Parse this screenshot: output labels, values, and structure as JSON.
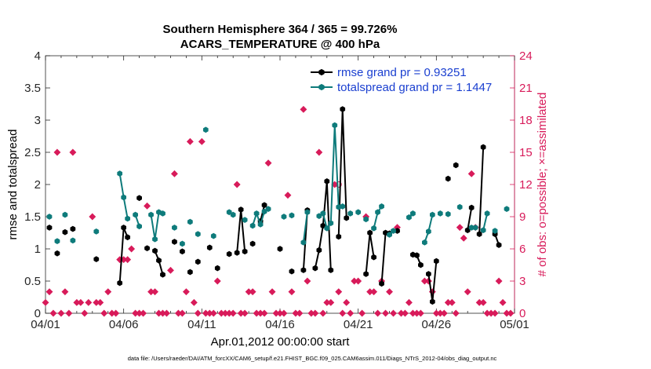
{
  "chart_data": {
    "type": "line",
    "title": "Southern Hemisphere 364 / 365 = 99.726%",
    "subtitle": "ACARS_TEMPERATURE @ 400 hPa",
    "xlabel": "Apr.01,2012 00:00:00 start",
    "ylabel": "rmse and totalspread",
    "y2label": "# of obs: o=possible; ×=assimilated",
    "footnote": "data file: /Users/raeder/DAI/ATM_forcXX/CAM6_setup/f.e21.FHIST_BGC.f09_025.CAM6assim.011/Diags_NTrS_2012-04/obs_diag_output.nc",
    "xlim": [
      0,
      30
    ],
    "ylim": [
      0,
      4
    ],
    "y2lim": [
      0,
      24
    ],
    "x_tick_labels": [
      "04/01",
      "04/06",
      "04/11",
      "04/16",
      "04/21",
      "04/26",
      "05/01"
    ],
    "y_ticks": [
      "0",
      "0.5",
      "1",
      "1.5",
      "2",
      "2.5",
      "3",
      "3.5",
      "4"
    ],
    "y2_ticks": [
      "0",
      "3",
      "6",
      "9",
      "12",
      "15",
      "18",
      "21",
      "24"
    ],
    "legend_position": "top-right",
    "series": [
      {
        "name": "rmse grand pr = 0.93251",
        "color": "#000000",
        "marker": "hexagon",
        "points": [
          [
            0.25,
            1.33
          ],
          [
            0.5,
            null
          ],
          [
            0.75,
            0.93
          ],
          [
            1.0,
            null
          ],
          [
            1.25,
            1.26
          ],
          [
            1.5,
            null
          ],
          [
            1.75,
            1.31
          ],
          [
            2.0,
            null
          ],
          [
            3.25,
            0.84
          ],
          [
            3.5,
            null
          ],
          [
            4.75,
            0.47
          ],
          [
            5.0,
            1.33
          ],
          [
            5.25,
            1.18
          ],
          [
            5.5,
            null
          ],
          [
            6.0,
            1.79
          ],
          [
            6.25,
            null
          ],
          [
            6.5,
            1.01
          ],
          [
            6.75,
            null
          ],
          [
            7.0,
            0.97
          ],
          [
            7.25,
            0.82
          ],
          [
            7.5,
            0.6
          ],
          [
            7.75,
            null
          ],
          [
            8.25,
            1.11
          ],
          [
            8.5,
            null
          ],
          [
            8.75,
            0.96
          ],
          [
            9.0,
            null
          ],
          [
            9.25,
            0.64
          ],
          [
            9.5,
            null
          ],
          [
            9.75,
            0.8
          ],
          [
            10.0,
            null
          ],
          [
            10.5,
            1.02
          ],
          [
            10.75,
            null
          ],
          [
            11.0,
            0.7
          ],
          [
            11.25,
            null
          ],
          [
            11.75,
            0.92
          ],
          [
            12.0,
            null
          ],
          [
            12.25,
            0.94
          ],
          [
            12.5,
            1.61
          ],
          [
            12.75,
            0.96
          ],
          [
            13.0,
            null
          ],
          [
            13.25,
            1.08
          ],
          [
            13.5,
            null
          ],
          [
            13.75,
            1.43
          ],
          [
            14.0,
            1.68
          ],
          [
            14.25,
            null
          ],
          [
            15.0,
            1.0
          ],
          [
            15.25,
            null
          ],
          [
            15.75,
            0.65
          ],
          [
            16.0,
            null
          ],
          [
            16.5,
            0.67
          ],
          [
            16.75,
            1.6
          ],
          [
            17.0,
            null
          ],
          [
            17.25,
            0.7
          ],
          [
            17.5,
            0.98
          ],
          [
            17.75,
            1.36
          ],
          [
            18.0,
            2.05
          ],
          [
            18.25,
            0.67
          ],
          [
            18.5,
            null
          ],
          [
            18.75,
            1.19
          ],
          [
            19.0,
            3.17
          ],
          [
            19.25,
            1.48
          ],
          [
            19.5,
            null
          ],
          [
            20.5,
            0.61
          ],
          [
            20.75,
            1.25
          ],
          [
            21.0,
            0.87
          ],
          [
            21.25,
            null
          ],
          [
            21.5,
            0.46
          ],
          [
            21.75,
            1.25
          ],
          [
            22.0,
            1.24
          ],
          [
            22.25,
            null
          ],
          [
            22.5,
            1.28
          ],
          [
            22.75,
            null
          ],
          [
            23.5,
            0.91
          ],
          [
            23.75,
            0.9
          ],
          [
            24.0,
            0.75
          ],
          [
            24.25,
            null
          ],
          [
            24.5,
            0.61
          ],
          [
            24.75,
            0.18
          ],
          [
            25.0,
            0.81
          ],
          [
            25.25,
            null
          ],
          [
            25.75,
            2.09
          ],
          [
            26.0,
            null
          ],
          [
            26.25,
            2.3
          ],
          [
            26.5,
            null
          ],
          [
            27.0,
            1.29
          ],
          [
            27.25,
            1.64
          ],
          [
            27.5,
            null
          ],
          [
            27.75,
            1.23
          ],
          [
            28.0,
            2.58
          ],
          [
            28.25,
            null
          ],
          [
            28.75,
            1.23
          ],
          [
            29.0,
            1.06
          ],
          [
            29.25,
            null
          ]
        ]
      },
      {
        "name": "totalspread grand pr = 1.1447",
        "color": "#0e7b7b",
        "marker": "hexagon",
        "points": [
          [
            0.25,
            1.5
          ],
          [
            0.5,
            null
          ],
          [
            0.75,
            1.12
          ],
          [
            1.0,
            null
          ],
          [
            1.25,
            1.53
          ],
          [
            1.5,
            null
          ],
          [
            1.75,
            1.13
          ],
          [
            2.0,
            null
          ],
          [
            3.25,
            1.27
          ],
          [
            3.5,
            null
          ],
          [
            4.75,
            2.17
          ],
          [
            5.0,
            1.8
          ],
          [
            5.25,
            1.47
          ],
          [
            5.5,
            null
          ],
          [
            5.75,
            1.53
          ],
          [
            6.0,
            1.35
          ],
          [
            6.25,
            null
          ],
          [
            6.75,
            1.53
          ],
          [
            7.0,
            1.15
          ],
          [
            7.25,
            1.57
          ],
          [
            7.5,
            1.55
          ],
          [
            7.75,
            null
          ],
          [
            8.25,
            1.33
          ],
          [
            8.5,
            null
          ],
          [
            8.75,
            1.08
          ],
          [
            9.0,
            null
          ],
          [
            9.25,
            1.42
          ],
          [
            9.5,
            null
          ],
          [
            9.75,
            1.23
          ],
          [
            10.0,
            null
          ],
          [
            10.25,
            2.85
          ],
          [
            10.5,
            null
          ],
          [
            10.75,
            1.2
          ],
          [
            11.0,
            null
          ],
          [
            11.75,
            1.57
          ],
          [
            12.0,
            1.53
          ],
          [
            12.25,
            null
          ],
          [
            12.75,
            1.45
          ],
          [
            13.0,
            null
          ],
          [
            13.25,
            1.36
          ],
          [
            13.5,
            1.55
          ],
          [
            13.75,
            1.38
          ],
          [
            14.0,
            1.58
          ],
          [
            14.25,
            1.62
          ],
          [
            14.5,
            null
          ],
          [
            15.25,
            1.5
          ],
          [
            15.5,
            null
          ],
          [
            15.75,
            1.52
          ],
          [
            16.0,
            null
          ],
          [
            16.5,
            1.1
          ],
          [
            16.75,
            1.57
          ],
          [
            17.0,
            null
          ],
          [
            17.5,
            1.51
          ],
          [
            17.75,
            1.55
          ],
          [
            18.0,
            1.32
          ],
          [
            18.25,
            1.4
          ],
          [
            18.5,
            2.92
          ],
          [
            18.75,
            1.65
          ],
          [
            19.0,
            1.66
          ],
          [
            19.25,
            null
          ],
          [
            19.5,
            1.55
          ],
          [
            19.75,
            null
          ],
          [
            20.0,
            1.57
          ],
          [
            20.25,
            null
          ],
          [
            20.5,
            1.46
          ],
          [
            20.75,
            null
          ],
          [
            21.0,
            1.32
          ],
          [
            21.25,
            1.57
          ],
          [
            21.5,
            1.66
          ],
          [
            21.75,
            null
          ],
          [
            22.0,
            1.22
          ],
          [
            22.25,
            1.28
          ],
          [
            22.5,
            null
          ],
          [
            23.25,
            1.49
          ],
          [
            23.5,
            1.55
          ],
          [
            23.75,
            null
          ],
          [
            24.25,
            1.1
          ],
          [
            24.5,
            1.27
          ],
          [
            24.75,
            1.53
          ],
          [
            25.0,
            null
          ],
          [
            25.25,
            1.55
          ],
          [
            25.5,
            null
          ],
          [
            25.75,
            1.54
          ],
          [
            26.0,
            null
          ],
          [
            26.5,
            1.65
          ],
          [
            26.75,
            null
          ],
          [
            27.25,
            1.33
          ],
          [
            27.5,
            1.33
          ],
          [
            27.75,
            null
          ],
          [
            28.0,
            1.29
          ],
          [
            28.25,
            1.55
          ],
          [
            28.5,
            null
          ],
          [
            28.75,
            1.28
          ],
          [
            29.0,
            null
          ],
          [
            29.5,
            1.62
          ],
          [
            29.75,
            null
          ]
        ]
      }
    ],
    "possible_obs": {
      "axis": "right",
      "color": "#d81b5a",
      "marker": "o",
      "points": [
        [
          18.75,
          12.0
        ]
      ]
    },
    "assimilated_obs": {
      "axis": "right",
      "color": "#d81b5a",
      "marker": "x",
      "points": [
        [
          0,
          1
        ],
        [
          0.25,
          2
        ],
        [
          0.5,
          0
        ],
        [
          0.75,
          15
        ],
        [
          1.0,
          0
        ],
        [
          1.25,
          2
        ],
        [
          1.5,
          0
        ],
        [
          1.75,
          15
        ],
        [
          2.0,
          1
        ],
        [
          2.25,
          1
        ],
        [
          2.5,
          0
        ],
        [
          2.75,
          1
        ],
        [
          3.0,
          9
        ],
        [
          3.25,
          1
        ],
        [
          3.5,
          1
        ],
        [
          3.75,
          0
        ],
        [
          4.0,
          2
        ],
        [
          4.25,
          0
        ],
        [
          4.5,
          0
        ],
        [
          4.75,
          5
        ],
        [
          5.0,
          5
        ],
        [
          5.25,
          5
        ],
        [
          5.5,
          6
        ],
        [
          5.75,
          0
        ],
        [
          6.0,
          0
        ],
        [
          6.25,
          0
        ],
        [
          6.5,
          10
        ],
        [
          6.75,
          2
        ],
        [
          7.0,
          2
        ],
        [
          7.25,
          0
        ],
        [
          7.5,
          0
        ],
        [
          7.75,
          0
        ],
        [
          8.0,
          4
        ],
        [
          8.25,
          13
        ],
        [
          8.5,
          0
        ],
        [
          8.75,
          0
        ],
        [
          9.0,
          2
        ],
        [
          9.25,
          16
        ],
        [
          9.5,
          1
        ],
        [
          9.75,
          0
        ],
        [
          10.0,
          16
        ],
        [
          10.25,
          0
        ],
        [
          10.5,
          0
        ],
        [
          10.75,
          0
        ],
        [
          11.0,
          3
        ],
        [
          11.25,
          0
        ],
        [
          11.5,
          0
        ],
        [
          11.75,
          0
        ],
        [
          12.0,
          0
        ],
        [
          12.25,
          12
        ],
        [
          12.5,
          0
        ],
        [
          12.75,
          0
        ],
        [
          13.0,
          2
        ],
        [
          13.25,
          2
        ],
        [
          13.5,
          0
        ],
        [
          13.75,
          0
        ],
        [
          14.0,
          0
        ],
        [
          14.25,
          14
        ],
        [
          14.5,
          2
        ],
        [
          14.75,
          0
        ],
        [
          15.0,
          0
        ],
        [
          15.25,
          0
        ],
        [
          15.5,
          11
        ],
        [
          15.75,
          2
        ],
        [
          16.0,
          0
        ],
        [
          16.25,
          0
        ],
        [
          16.5,
          19
        ],
        [
          16.75,
          3
        ],
        [
          17.0,
          0
        ],
        [
          17.25,
          0
        ],
        [
          17.5,
          15
        ],
        [
          17.75,
          0
        ],
        [
          18.0,
          1
        ],
        [
          18.25,
          1
        ],
        [
          18.5,
          12
        ],
        [
          18.75,
          2
        ],
        [
          19.0,
          0
        ],
        [
          19.25,
          1
        ],
        [
          19.5,
          0
        ],
        [
          19.75,
          3
        ],
        [
          20.0,
          3
        ],
        [
          20.25,
          0
        ],
        [
          20.5,
          9
        ],
        [
          20.75,
          2
        ],
        [
          21.0,
          2
        ],
        [
          21.25,
          0
        ],
        [
          21.5,
          3
        ],
        [
          21.75,
          0
        ],
        [
          22.0,
          2
        ],
        [
          22.25,
          0
        ],
        [
          22.5,
          8
        ],
        [
          22.75,
          0
        ],
        [
          23.0,
          0
        ],
        [
          23.25,
          1
        ],
        [
          23.5,
          0
        ],
        [
          23.75,
          0
        ],
        [
          24.0,
          0
        ],
        [
          24.25,
          3
        ],
        [
          24.5,
          3
        ],
        [
          24.75,
          2
        ],
        [
          25.0,
          0
        ],
        [
          25.25,
          0
        ],
        [
          25.5,
          0
        ],
        [
          25.75,
          1
        ],
        [
          26.0,
          1
        ],
        [
          26.25,
          0
        ],
        [
          26.5,
          8
        ],
        [
          26.75,
          7
        ],
        [
          27.0,
          2
        ],
        [
          27.25,
          13
        ],
        [
          27.5,
          8
        ],
        [
          27.75,
          1
        ],
        [
          28.0,
          1
        ],
        [
          28.25,
          0
        ],
        [
          28.5,
          0
        ],
        [
          28.75,
          0
        ],
        [
          29.0,
          3
        ],
        [
          29.25,
          1
        ],
        [
          29.5,
          0
        ],
        [
          29.75,
          0
        ]
      ]
    }
  }
}
